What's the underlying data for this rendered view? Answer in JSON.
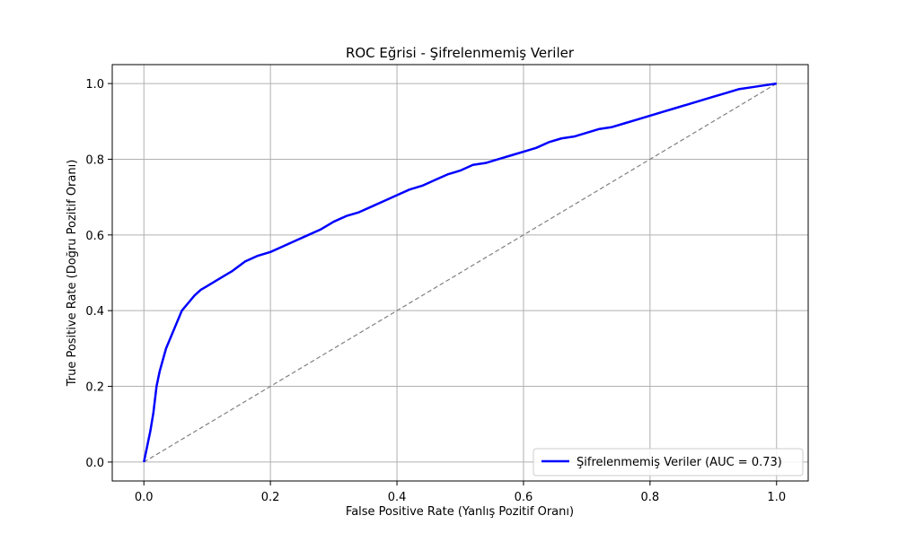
{
  "chart_data": {
    "type": "line",
    "title": "ROC Eğrisi - Şifrelenmemiş Veriler",
    "xlabel": "False Positive Rate (Yanlış Pozitif Oranı)",
    "ylabel": "True Positive Rate (Doğru Pozitif Oranı)",
    "xlim": [
      -0.05,
      1.05
    ],
    "ylim": [
      -0.05,
      1.05
    ],
    "x_ticks": [
      "0.0",
      "0.2",
      "0.4",
      "0.6",
      "0.8",
      "1.0"
    ],
    "y_ticks": [
      "0.0",
      "0.2",
      "0.4",
      "0.6",
      "0.8",
      "1.0"
    ],
    "grid": true,
    "legend_position": "lower-right",
    "colors": {
      "roc": "#0000ff",
      "diagonal": "#808080",
      "grid": "#b0b0b0"
    },
    "series": [
      {
        "name": "Şifrelenmemiş Veriler (AUC = 0.73)",
        "style": "solid",
        "x": [
          0.0,
          0.005,
          0.01,
          0.015,
          0.02,
          0.025,
          0.03,
          0.035,
          0.04,
          0.045,
          0.05,
          0.055,
          0.06,
          0.07,
          0.08,
          0.09,
          0.1,
          0.12,
          0.14,
          0.16,
          0.18,
          0.2,
          0.22,
          0.24,
          0.26,
          0.28,
          0.3,
          0.32,
          0.34,
          0.36,
          0.38,
          0.4,
          0.42,
          0.44,
          0.46,
          0.48,
          0.5,
          0.52,
          0.54,
          0.56,
          0.58,
          0.6,
          0.62,
          0.64,
          0.66,
          0.68,
          0.7,
          0.72,
          0.74,
          0.76,
          0.78,
          0.8,
          0.82,
          0.84,
          0.86,
          0.88,
          0.9,
          0.92,
          0.94,
          0.96,
          0.98,
          1.0
        ],
        "y": [
          0.0,
          0.04,
          0.08,
          0.13,
          0.2,
          0.24,
          0.27,
          0.3,
          0.32,
          0.34,
          0.36,
          0.38,
          0.4,
          0.42,
          0.44,
          0.455,
          0.465,
          0.485,
          0.505,
          0.53,
          0.545,
          0.555,
          0.57,
          0.585,
          0.6,
          0.615,
          0.635,
          0.65,
          0.66,
          0.675,
          0.69,
          0.705,
          0.72,
          0.73,
          0.745,
          0.76,
          0.77,
          0.785,
          0.79,
          0.8,
          0.81,
          0.82,
          0.83,
          0.845,
          0.855,
          0.86,
          0.87,
          0.88,
          0.885,
          0.895,
          0.905,
          0.915,
          0.925,
          0.935,
          0.945,
          0.955,
          0.965,
          0.975,
          0.985,
          0.99,
          0.995,
          1.0
        ]
      },
      {
        "style": "dashed",
        "x": [
          0.0,
          1.0
        ],
        "y": [
          0.0,
          1.0
        ]
      }
    ]
  }
}
